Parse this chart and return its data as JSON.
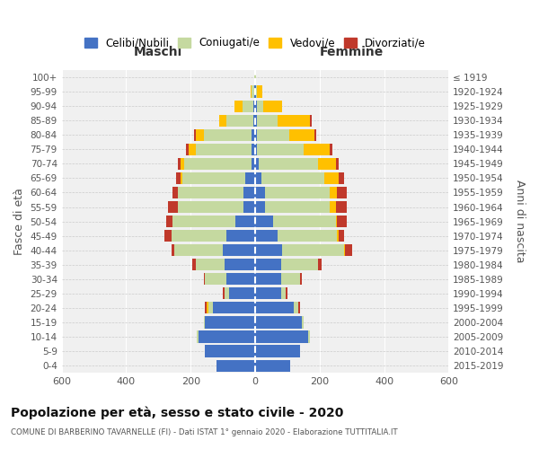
{
  "age_groups": [
    "0-4",
    "5-9",
    "10-14",
    "15-19",
    "20-24",
    "25-29",
    "30-34",
    "35-39",
    "40-44",
    "45-49",
    "50-54",
    "55-59",
    "60-64",
    "65-69",
    "70-74",
    "75-79",
    "80-84",
    "85-89",
    "90-94",
    "95-99",
    "100+"
  ],
  "birth_years": [
    "2015-2019",
    "2010-2014",
    "2005-2009",
    "2000-2004",
    "1995-1999",
    "1990-1994",
    "1985-1989",
    "1980-1984",
    "1975-1979",
    "1970-1974",
    "1965-1969",
    "1960-1964",
    "1955-1959",
    "1950-1954",
    "1945-1949",
    "1940-1944",
    "1935-1939",
    "1930-1934",
    "1925-1929",
    "1920-1924",
    "≤ 1919"
  ],
  "males": {
    "celibi": [
      120,
      155,
      175,
      155,
      130,
      80,
      90,
      95,
      100,
      90,
      60,
      35,
      35,
      30,
      10,
      10,
      10,
      5,
      5,
      2,
      0
    ],
    "coniugati": [
      0,
      0,
      5,
      5,
      15,
      15,
      65,
      90,
      150,
      170,
      195,
      205,
      205,
      195,
      210,
      175,
      150,
      85,
      35,
      8,
      2
    ],
    "vedovi": [
      0,
      0,
      0,
      0,
      5,
      0,
      0,
      0,
      0,
      0,
      0,
      0,
      0,
      5,
      10,
      20,
      25,
      20,
      25,
      5,
      0
    ],
    "divorziati": [
      0,
      0,
      0,
      0,
      5,
      5,
      5,
      10,
      10,
      20,
      20,
      30,
      15,
      15,
      10,
      10,
      5,
      0,
      0,
      0,
      0
    ]
  },
  "females": {
    "nubili": [
      110,
      140,
      165,
      145,
      120,
      80,
      80,
      80,
      85,
      70,
      55,
      30,
      30,
      20,
      10,
      5,
      5,
      5,
      5,
      2,
      0
    ],
    "coniugate": [
      0,
      0,
      5,
      5,
      15,
      15,
      60,
      115,
      190,
      185,
      195,
      200,
      200,
      195,
      185,
      145,
      100,
      65,
      20,
      5,
      2
    ],
    "vedove": [
      0,
      0,
      0,
      0,
      0,
      0,
      0,
      0,
      5,
      5,
      5,
      20,
      25,
      45,
      55,
      80,
      80,
      100,
      60,
      15,
      2
    ],
    "divorziate": [
      0,
      0,
      0,
      0,
      5,
      5,
      5,
      10,
      20,
      15,
      30,
      35,
      30,
      15,
      10,
      10,
      5,
      5,
      0,
      0,
      0
    ]
  },
  "colors": {
    "celibi": "#4472C4",
    "coniugati": "#c5d9a0",
    "vedovi": "#ffc000",
    "divorziati": "#c0392b"
  },
  "title": "Popolazione per età, sesso e stato civile - 2020",
  "subtitle": "COMUNE DI BARBERINO TAVARNELLE (FI) - Dati ISTAT 1° gennaio 2020 - Elaborazione TUTTITALIA.IT",
  "xlabel_left": "Maschi",
  "xlabel_right": "Femmine",
  "ylabel_left": "Fasce di età",
  "ylabel_right": "Anni di nascita",
  "xlim": 600,
  "bg_color": "#f0f0f0",
  "legend_labels": [
    "Celibi/Nubili",
    "Coniugati/e",
    "Vedovi/e",
    "Divorziati/e"
  ]
}
